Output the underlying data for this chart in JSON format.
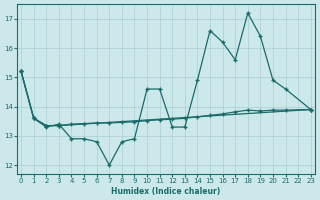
{
  "background_color": "#cce8eb",
  "grid_color": "#aacfd4",
  "line_color": "#1a6b6b",
  "xlabel": "Humidex (Indice chaleur)",
  "x_ticks": [
    0,
    1,
    2,
    3,
    4,
    5,
    6,
    7,
    8,
    9,
    10,
    11,
    12,
    13,
    14,
    15,
    16,
    17,
    18,
    19,
    20,
    21,
    22,
    23
  ],
  "ylim": [
    11.7,
    17.5
  ],
  "xlim": [
    -0.3,
    23.3
  ],
  "yticks": [
    12,
    13,
    14,
    15,
    16,
    17
  ],
  "line1_x": [
    0,
    1,
    2,
    3,
    4,
    5,
    6,
    7,
    8,
    9,
    10,
    11,
    12,
    13,
    14,
    15,
    16,
    17,
    18,
    19,
    20,
    21,
    23
  ],
  "line1_y": [
    15.2,
    13.6,
    13.3,
    13.4,
    12.9,
    12.9,
    12.8,
    12.0,
    12.8,
    12.9,
    14.6,
    14.6,
    13.3,
    13.3,
    14.9,
    16.6,
    16.2,
    15.6,
    17.2,
    16.4,
    14.9,
    14.6,
    13.9
  ],
  "line2_x": [
    0,
    1,
    2,
    3,
    23
  ],
  "line2_y": [
    15.2,
    13.6,
    13.35,
    13.35,
    13.9
  ],
  "line3_x": [
    0,
    1,
    2,
    3,
    4,
    5,
    6,
    7,
    8,
    9,
    10,
    11,
    12,
    13,
    14,
    15,
    16,
    17,
    18,
    19,
    20,
    21,
    23
  ],
  "line3_y": [
    15.2,
    13.6,
    13.35,
    13.35,
    13.4,
    13.42,
    13.44,
    13.44,
    13.46,
    13.48,
    13.52,
    13.55,
    13.57,
    13.6,
    13.65,
    13.7,
    13.75,
    13.82,
    13.88,
    13.85,
    13.88,
    13.88,
    13.9
  ]
}
